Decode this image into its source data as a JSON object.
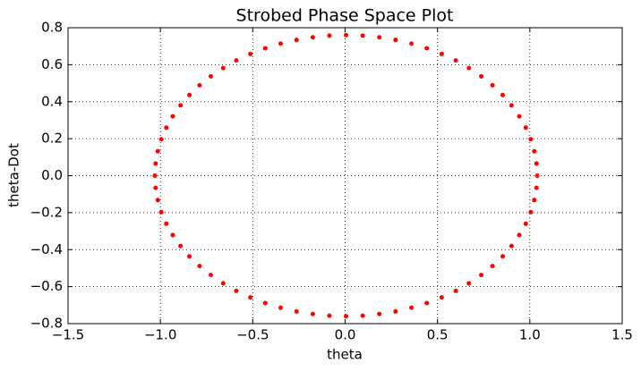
{
  "chart_data": {
    "type": "scatter",
    "title": "Strobed Phase Space Plot",
    "x_label": "theta",
    "y_label": "theta-Dot",
    "color": "#ff0000",
    "grid": true,
    "xlim": [
      -1.5,
      1.5
    ],
    "ylim": [
      -0.8,
      0.8
    ],
    "xticks": [
      {
        "value": -1.5,
        "label": "−1.5"
      },
      {
        "value": -1.0,
        "label": "−1.0"
      },
      {
        "value": -0.5,
        "label": "−0.5"
      },
      {
        "value": 0,
        "label": "0.0"
      },
      {
        "value": 0.5,
        "label": "0.5"
      },
      {
        "value": 1.0,
        "label": "1.0"
      },
      {
        "value": 1.5,
        "label": "1.5"
      }
    ],
    "yticks": [
      {
        "value": -0.8,
        "label": "−0.8"
      },
      {
        "value": -0.6,
        "label": "−0.6"
      },
      {
        "value": -0.4,
        "label": "−0.4"
      },
      {
        "value": -0.2,
        "label": "−0.2"
      },
      {
        "value": 0,
        "label": "0.0"
      },
      {
        "value": 0.2,
        "label": "0.2"
      },
      {
        "value": 0.4,
        "label": "0.4"
      },
      {
        "value": 0.6,
        "label": "0.6"
      },
      {
        "value": 0.8,
        "label": "0.8"
      }
    ],
    "x": [
      1.04,
      1.036,
      1.024,
      1.005,
      0.978,
      0.943,
      0.901,
      0.853,
      0.798,
      0.737,
      0.67,
      0.599,
      0.523,
      0.442,
      0.359,
      0.273,
      0.185,
      0.095,
      0.005,
      -0.085,
      -0.175,
      -0.263,
      -0.349,
      -0.432,
      -0.513,
      -0.589,
      -0.66,
      -0.727,
      -0.788,
      -0.843,
      -0.891,
      -0.933,
      -0.968,
      -0.995,
      -1.014,
      -1.026,
      -1.03,
      -1.026,
      -1.014,
      -0.995,
      -0.968,
      -0.933,
      -0.891,
      -0.843,
      -0.788,
      -0.727,
      -0.66,
      -0.589,
      -0.513,
      -0.432,
      -0.349,
      -0.263,
      -0.175,
      -0.085,
      0.005,
      0.095,
      0.185,
      0.273,
      0.359,
      0.442,
      0.523,
      0.599,
      0.67,
      0.737,
      0.798,
      0.853,
      0.901,
      0.943,
      0.978,
      1.005,
      1.024,
      1.036
    ],
    "values": [
      0,
      0.066,
      0.132,
      0.197,
      0.26,
      0.321,
      0.38,
      0.436,
      0.489,
      0.537,
      0.582,
      0.623,
      0.658,
      0.689,
      0.714,
      0.734,
      0.748,
      0.757,
      0.76,
      0.757,
      0.748,
      0.734,
      0.714,
      0.689,
      0.658,
      0.623,
      0.582,
      0.537,
      0.489,
      0.436,
      0.38,
      0.321,
      0.26,
      0.197,
      0.132,
      0.066,
      0,
      -0.066,
      -0.132,
      -0.197,
      -0.26,
      -0.321,
      -0.38,
      -0.436,
      -0.489,
      -0.537,
      -0.582,
      -0.623,
      -0.658,
      -0.689,
      -0.714,
      -0.734,
      -0.748,
      -0.757,
      -0.76,
      -0.757,
      -0.748,
      -0.734,
      -0.714,
      -0.689,
      -0.658,
      -0.623,
      -0.582,
      -0.537,
      -0.489,
      -0.436,
      -0.38,
      -0.321,
      -0.26,
      -0.197,
      -0.132,
      -0.066
    ]
  }
}
